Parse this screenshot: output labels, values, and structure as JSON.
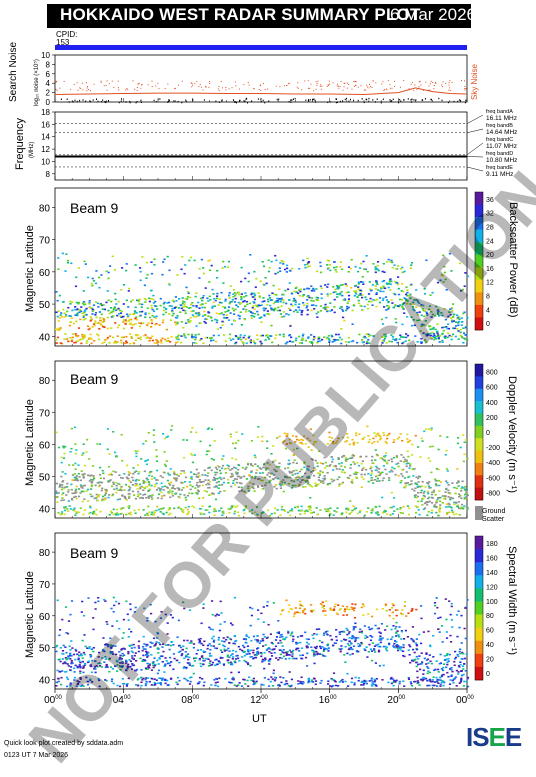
{
  "header": {
    "title": "HOKKAIDO WEST RADAR SUMMARY PLOT",
    "date": "6 Mar 2026",
    "cpid_label": "CPID:",
    "cpid_value": "153"
  },
  "noise_panel": {
    "ylabel_1": "Search Noise",
    "ylabel_2": "log₁₀ noise (×10⁵)",
    "yticks": [
      "0",
      "2",
      "4",
      "6",
      "8",
      "10"
    ],
    "legend": "Sky Noise",
    "colors": {
      "sky_noise": "#e05020",
      "search_noise": "#000000"
    }
  },
  "frequency_panel": {
    "ylabel": "Frequency",
    "yunit": "(MHz)",
    "yticks": [
      "8",
      "10",
      "12",
      "14",
      "16",
      "18"
    ],
    "bands": [
      {
        "label": "freq bandA",
        "value": "16.11 MHz",
        "mhz": 16.11
      },
      {
        "label": "freq bandB",
        "value": "14.64 MHz",
        "mhz": 14.64
      },
      {
        "label": "freq bandC",
        "value": "11.07 MHz",
        "mhz": 11.07
      },
      {
        "label": "freq bandD",
        "value": "10.80 MHz",
        "mhz": 10.8
      },
      {
        "label": "freq bandE",
        "value": "9.11 MHz",
        "mhz": 9.11
      }
    ],
    "line_mhz": 10.8
  },
  "beam_panels": [
    {
      "beam_label": "Beam  9",
      "ylabel": "Magnetic Latitude",
      "yticks": [
        "40",
        "50",
        "60",
        "70",
        "80"
      ],
      "cbar_title": "Backscatter Power (dB)",
      "cbar_ticks": [
        "0",
        "4",
        "8",
        "12",
        "16",
        "20",
        "24",
        "28",
        "32",
        "36"
      ],
      "cbar_range": [
        0,
        36
      ],
      "cbar_colors": [
        "#5a1aa0",
        "#2a28d8",
        "#1a70f0",
        "#10b0e8",
        "#10c070",
        "#50d020",
        "#b8e010",
        "#f0d010",
        "#f09010",
        "#f04010",
        "#d01010"
      ],
      "ground_label": ""
    },
    {
      "beam_label": "Beam  9",
      "ylabel": "Magnetic Latitude",
      "yticks": [
        "40",
        "50",
        "60",
        "70",
        "80"
      ],
      "cbar_title": "Doppler Velocity (m s⁻¹)",
      "cbar_ticks": [
        "800",
        "600",
        "400",
        "200",
        "0",
        "-200",
        "-400",
        "-600",
        "-800"
      ],
      "cbar_range": [
        -800,
        800
      ],
      "cbar_colors": [
        "#2018a0",
        "#2040e0",
        "#1a90f0",
        "#18c0d0",
        "#30c060",
        "#80d020",
        "#d0e020",
        "#f0c010",
        "#f08010",
        "#e03010",
        "#c01010"
      ],
      "ground_label": "Ground",
      "ground_label_2": "Scatter",
      "ground_color": "#909090"
    },
    {
      "beam_label": "Beam  9",
      "ylabel": "Magnetic Latitude",
      "yticks": [
        "40",
        "50",
        "60",
        "70",
        "80"
      ],
      "cbar_title": "Spectral Width (m s⁻¹)",
      "cbar_ticks": [
        "0",
        "20",
        "40",
        "60",
        "80",
        "100",
        "120",
        "140",
        "160",
        "180"
      ],
      "cbar_range": [
        0,
        180
      ],
      "cbar_colors": [
        "#5a1aa0",
        "#2a28d8",
        "#1a70f0",
        "#10b0e8",
        "#10c070",
        "#50d020",
        "#b8e010",
        "#f0d010",
        "#f09010",
        "#f04010",
        "#d01010"
      ],
      "ground_label": ""
    }
  ],
  "x_axis": {
    "ticks": [
      "00",
      "04",
      "08",
      "12",
      "16",
      "20",
      "00"
    ],
    "tick_sup": "00",
    "label": "UT",
    "range_hours": [
      0,
      24
    ]
  },
  "footer": {
    "line1": "Quick look plot created by sddata.adm",
    "line2": "0123 UT  7 Mar 2026"
  },
  "logo": {
    "text_a": "IS",
    "text_b": "E",
    "text_c": "E"
  },
  "watermark": "NOT FOR PUBLICATION",
  "chart_data": [
    {
      "type": "line",
      "title": "Search Noise",
      "xlabel": "UT",
      "ylabel": "Search Noise",
      "xlim": [
        0,
        24
      ],
      "ylim": [
        0,
        10
      ],
      "series": [
        {
          "name": "Sky Noise",
          "x": [
            0,
            2,
            4,
            6,
            8,
            10,
            12,
            14,
            16,
            18,
            20,
            21,
            22,
            23,
            24
          ],
          "values": [
            1.6,
            1.7,
            1.8,
            1.9,
            1.9,
            1.8,
            1.8,
            1.7,
            1.7,
            1.6,
            2.0,
            3.0,
            2.2,
            1.8,
            1.7
          ]
        }
      ]
    },
    {
      "type": "line",
      "title": "Frequency",
      "xlabel": "UT",
      "ylabel": "Frequency",
      "xlim": [
        0,
        24
      ],
      "ylim": [
        7,
        18
      ],
      "series": [
        {
          "name": "",
          "x": [
            0,
            24
          ],
          "values": [
            10.8,
            10.8
          ]
        }
      ]
    },
    {
      "type": "heatmap",
      "title": "Backscatter Power (dB)",
      "xlabel": "UT",
      "ylabel": "Magnetic Latitude",
      "xlim": [
        0,
        24
      ],
      "ylim": [
        37,
        86
      ],
      "grid": false
    },
    {
      "type": "heatmap",
      "title": "Doppler Velocity (m s⁻¹)",
      "xlabel": "UT",
      "ylabel": "Magnetic Latitude",
      "xlim": [
        0,
        24
      ],
      "ylim": [
        37,
        86
      ],
      "grid": false
    },
    {
      "type": "heatmap",
      "title": "Spectral Width (m s⁻¹)",
      "xlabel": "UT",
      "ylabel": "Magnetic Latitude",
      "xlim": [
        0,
        24
      ],
      "ylim": [
        37,
        86
      ],
      "grid": false
    }
  ]
}
